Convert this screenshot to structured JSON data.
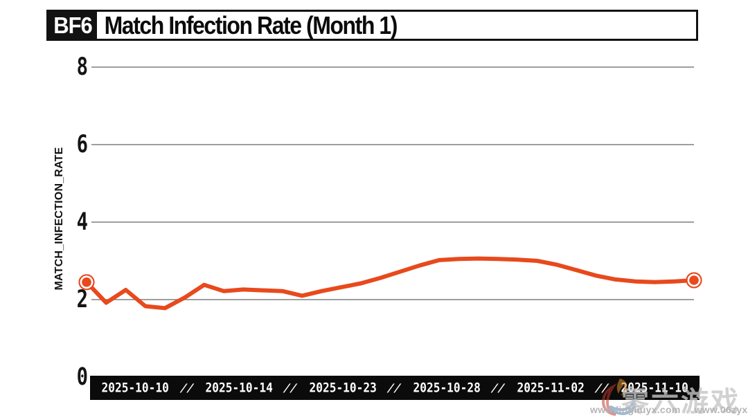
{
  "header": {
    "logo": "BF6",
    "title": "Match Infection Rate (Month 1)"
  },
  "chart_data": {
    "type": "line",
    "title": "Match Infection Rate (Month 1)",
    "xlabel": "",
    "ylabel": "MATCH_INFECTION_RATE",
    "ylim": [
      0,
      8.3
    ],
    "y_ticks": [
      0,
      2,
      4,
      6,
      8
    ],
    "grid": true,
    "legend_position": "none",
    "x_tick_labels": [
      "2025-10-10",
      "2025-10-14",
      "2025-10-23",
      "2025-10-28",
      "2025-11-02",
      "2025-11-10"
    ],
    "x_tick_separator": "//",
    "series": [
      {
        "name": "match_infection_rate",
        "color": "#E8491D",
        "marker_endpoints_only": true,
        "values": [
          2.45,
          1.92,
          2.25,
          1.83,
          1.78,
          2.05,
          2.38,
          2.22,
          2.26,
          2.24,
          2.22,
          2.1,
          2.22,
          2.32,
          2.42,
          2.56,
          2.72,
          2.88,
          3.02,
          3.05,
          3.06,
          3.05,
          3.03,
          3.0,
          2.9,
          2.76,
          2.62,
          2.52,
          2.47,
          2.45,
          2.47,
          2.5
        ]
      }
    ],
    "gridline_color": "#7f7f7f",
    "axis_bar_color": "#0b0b0b"
  },
  "watermark": {
    "cn_text": "零六游戏",
    "url_1": "www.lingliuyx.com",
    "url_2": "www.06zyx.com"
  }
}
